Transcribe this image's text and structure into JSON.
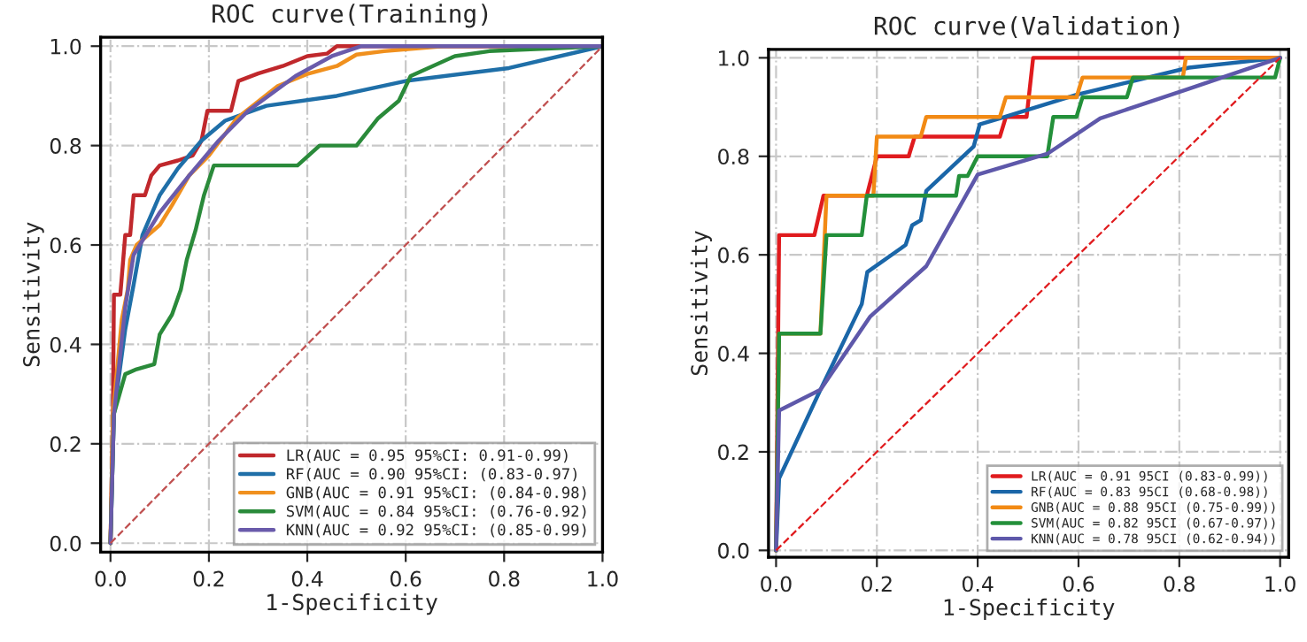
{
  "chart_data": [
    {
      "type": "line",
      "title": "ROC curve(Training)",
      "xlabel": "1-Specificity",
      "ylabel": "Sensitivity",
      "xlim": [
        -0.02,
        1.0
      ],
      "ylim": [
        -0.018,
        1.018
      ],
      "xticks": [
        {
          "value": 0,
          "label": "0.0"
        },
        {
          "value": 0.2,
          "label": "0.2"
        },
        {
          "value": 0.4,
          "label": "0.4"
        },
        {
          "value": 0.6,
          "label": "0.6"
        },
        {
          "value": 0.8,
          "label": "0.8"
        },
        {
          "value": 1,
          "label": "1.0"
        }
      ],
      "yticks": [
        {
          "value": 0,
          "label": "0.0"
        },
        {
          "value": 0.2,
          "label": "0.2"
        },
        {
          "value": 0.4,
          "label": "0.4"
        },
        {
          "value": 0.6,
          "label": "0.6"
        },
        {
          "value": 0.8,
          "label": "0.8"
        },
        {
          "value": 1,
          "label": "1.0"
        }
      ],
      "grid": true,
      "legend": "bottom right",
      "series": [
        {
          "name": "LR(AUC = 0.95 95%CI: 0.91-0.99)",
          "color": "#c0282c",
          "x": [
            0,
            0.005,
            0.007,
            0.02,
            0.03,
            0.04,
            0.047,
            0.07,
            0.083,
            0.1,
            0.137,
            0.167,
            0.185,
            0.197,
            0.245,
            0.26,
            0.3,
            0.35,
            0.4,
            0.44,
            0.46,
            1
          ],
          "values": [
            0,
            0.26,
            0.5,
            0.5,
            0.62,
            0.62,
            0.7,
            0.7,
            0.74,
            0.76,
            0.77,
            0.78,
            0.81,
            0.87,
            0.87,
            0.93,
            0.945,
            0.96,
            0.98,
            0.985,
            1,
            1
          ]
        },
        {
          "name": "RF(AUC = 0.90 95%CI: (0.83-0.97)",
          "color": "#1f6fa8",
          "x": [
            0,
            0.007,
            0.03,
            0.047,
            0.065,
            0.1,
            0.137,
            0.185,
            0.233,
            0.317,
            0.46,
            0.6,
            0.81,
            1
          ],
          "values": [
            0,
            0.26,
            0.43,
            0.52,
            0.62,
            0.7,
            0.754,
            0.81,
            0.85,
            0.88,
            0.9,
            0.93,
            0.956,
            1
          ]
        },
        {
          "name": "GNB(AUC = 0.91 95%CI: (0.84-0.98)",
          "color": "#f0901e",
          "x": [
            0,
            0.005,
            0.023,
            0.035,
            0.04,
            0.053,
            0.1,
            0.125,
            0.16,
            0.2,
            0.257,
            0.34,
            0.4,
            0.46,
            0.5,
            0.556,
            0.676,
            1
          ],
          "values": [
            0,
            0.26,
            0.45,
            0.51,
            0.57,
            0.6,
            0.64,
            0.68,
            0.74,
            0.78,
            0.855,
            0.92,
            0.944,
            0.96,
            0.983,
            0.99,
            1,
            1
          ]
        },
        {
          "name": "SVM(AUC = 0.84 95%CI: (0.76-0.92)",
          "color": "#2a8a3a",
          "x": [
            0,
            0.007,
            0.03,
            0.053,
            0.089,
            0.1,
            0.125,
            0.143,
            0.155,
            0.173,
            0.19,
            0.21,
            0.38,
            0.425,
            0.5,
            0.544,
            0.586,
            0.61,
            0.7,
            0.77,
            1
          ],
          "values": [
            0,
            0.26,
            0.34,
            0.35,
            0.36,
            0.42,
            0.46,
            0.51,
            0.57,
            0.63,
            0.7,
            0.76,
            0.76,
            0.8,
            0.8,
            0.855,
            0.89,
            0.94,
            0.98,
            0.99,
            1
          ]
        },
        {
          "name": "KNN(AUC = 0.92 95%CI: (0.85-0.99)",
          "color": "#6a5bab",
          "x": [
            0,
            0.007,
            0.03,
            0.047,
            0.1,
            0.16,
            0.22,
            0.28,
            0.376,
            0.45,
            0.51,
            1
          ],
          "values": [
            0,
            0.26,
            0.475,
            0.58,
            0.665,
            0.74,
            0.81,
            0.87,
            0.94,
            0.98,
            1,
            1
          ]
        },
        {
          "color": "#c05050",
          "line_style": "dashed",
          "x": [
            0,
            1
          ],
          "values": [
            0,
            1
          ]
        }
      ]
    },
    {
      "type": "line",
      "title": "ROC curve(Validation)",
      "xlabel": "1-Specificity",
      "ylabel": "Sensitivity",
      "xlim": [
        -0.015,
        1.017
      ],
      "ylim": [
        -0.014,
        1.017
      ],
      "xticks": [
        {
          "value": 0,
          "label": "0.0"
        },
        {
          "value": 0.2,
          "label": "0.2"
        },
        {
          "value": 0.4,
          "label": "0.4"
        },
        {
          "value": 0.6,
          "label": "0.6"
        },
        {
          "value": 0.8,
          "label": "0.8"
        },
        {
          "value": 1,
          "label": "1.0"
        }
      ],
      "yticks": [
        {
          "value": 0,
          "label": "0.0"
        },
        {
          "value": 0.2,
          "label": "0.2"
        },
        {
          "value": 0.4,
          "label": "0.4"
        },
        {
          "value": 0.6,
          "label": "0.6"
        },
        {
          "value": 0.8,
          "label": "0.8"
        },
        {
          "value": 1,
          "label": "1.0"
        }
      ],
      "grid": true,
      "legend": "bottom right",
      "series": [
        {
          "name": "LR(AUC = 0.91 95CI (0.83-0.99))",
          "color": "#e01b1e",
          "x": [
            0,
            0.006,
            0.076,
            0.094,
            0.18,
            0.2,
            0.263,
            0.275,
            0.444,
            0.456,
            0.497,
            0.51,
            1
          ],
          "values": [
            0,
            0.64,
            0.64,
            0.72,
            0.72,
            0.8,
            0.8,
            0.84,
            0.84,
            0.88,
            0.88,
            1,
            1
          ]
        },
        {
          "name": "RF(AUC = 0.83 95CI (0.68-0.98))",
          "color": "#1a66a8",
          "x": [
            0,
            0.006,
            0.088,
            0.17,
            0.181,
            0.257,
            0.27,
            0.287,
            0.298,
            0.392,
            0.404,
            0.444,
            0.596,
            0.819,
            1
          ],
          "values": [
            0,
            0.146,
            0.326,
            0.5,
            0.565,
            0.62,
            0.66,
            0.67,
            0.73,
            0.82,
            0.865,
            0.877,
            0.925,
            0.98,
            1
          ]
        },
        {
          "name": "GNB(AUC = 0.88 95CI (0.75-0.99))",
          "color": "#f28a14",
          "x": [
            0,
            0.006,
            0.088,
            0.1,
            0.193,
            0.2,
            0.287,
            0.298,
            0.444,
            0.456,
            0.596,
            0.608,
            0.807,
            0.813,
            1
          ],
          "values": [
            0,
            0.44,
            0.44,
            0.72,
            0.72,
            0.84,
            0.84,
            0.88,
            0.88,
            0.92,
            0.92,
            0.96,
            0.96,
            1,
            1
          ]
        },
        {
          "name": "SVM(AUC = 0.82 95CI (0.67-0.97))",
          "color": "#23903a",
          "x": [
            0,
            0.006,
            0.088,
            0.1,
            0.17,
            0.18,
            0.357,
            0.363,
            0.38,
            0.4,
            0.538,
            0.55,
            0.596,
            0.608,
            0.696,
            0.708,
            0.99,
            1
          ],
          "values": [
            0,
            0.44,
            0.44,
            0.64,
            0.64,
            0.72,
            0.72,
            0.76,
            0.76,
            0.8,
            0.8,
            0.88,
            0.88,
            0.92,
            0.92,
            0.96,
            0.96,
            1
          ]
        },
        {
          "name": "KNN(AUC = 0.78 95CI (0.62-0.94))",
          "color": "#5e58aa",
          "x": [
            0,
            0.006,
            0.088,
            0.187,
            0.298,
            0.4,
            0.538,
            0.643,
            0.819,
            1
          ],
          "values": [
            0,
            0.284,
            0.326,
            0.475,
            0.577,
            0.763,
            0.805,
            0.877,
            0.937,
            1
          ]
        },
        {
          "color": "#e01b1e",
          "line_style": "dashed",
          "x": [
            0,
            1
          ],
          "values": [
            0,
            1
          ]
        }
      ]
    }
  ]
}
